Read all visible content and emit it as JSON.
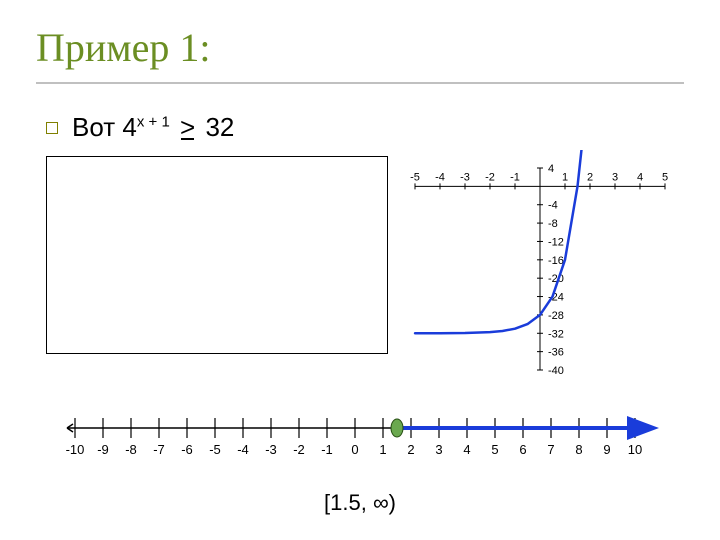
{
  "title": {
    "text": "Пример 1:",
    "color": "#6b8e23",
    "fontsize": 40
  },
  "underline_color": "#c0c0c0",
  "bullet": {
    "prefix": "Вот ",
    "base": "4",
    "exponent": "x + 1",
    "relation": ">",
    "rhs": "32",
    "bullet_border_color": "#808000"
  },
  "work_box": {
    "border_color": "#000000",
    "background_color": "#ffffff"
  },
  "graph": {
    "type": "line",
    "x_ticks": [
      -5,
      -4,
      -3,
      -2,
      -1,
      1,
      2,
      3,
      4,
      5
    ],
    "y_ticks_pos": [
      4
    ],
    "y_ticks_neg": [
      -4,
      -8,
      -12,
      -16,
      -20,
      -24,
      -28,
      -32,
      -36,
      -40
    ],
    "xlim": [
      -5,
      5
    ],
    "ylim": [
      -40,
      4
    ],
    "curve_color": "#1a3cda",
    "axis_color": "#000000",
    "curve_points": [
      [
        -5.0,
        -32.0
      ],
      [
        -4.0,
        -31.984
      ],
      [
        -3.0,
        -31.938
      ],
      [
        -2.0,
        -31.75
      ],
      [
        -1.5,
        -31.5
      ],
      [
        -1.0,
        -31.0
      ],
      [
        -0.5,
        -30.0
      ],
      [
        0.0,
        -28.0
      ],
      [
        0.5,
        -24.0
      ],
      [
        1.0,
        -16.0
      ],
      [
        1.5,
        0.0
      ],
      [
        1.7,
        10.0
      ],
      [
        1.8,
        16.0
      ]
    ],
    "line_width": 2.5,
    "label_fontsize": 11
  },
  "numberline": {
    "ticks": [
      -10,
      -9,
      -8,
      -7,
      -6,
      -5,
      -4,
      -3,
      -2,
      -1,
      0,
      1,
      2,
      3,
      4,
      5,
      6,
      7,
      8,
      9,
      10
    ],
    "line_color": "#000000",
    "ray_color": "#1a3cda",
    "ray_start": 1.5,
    "point_fill": "#6aa84f",
    "point_stroke": "#274e13",
    "label_fontsize": 13,
    "arrow_color": "#1a3cda"
  },
  "answer": {
    "text": "[1.5, ∞)",
    "fontsize": 22
  }
}
